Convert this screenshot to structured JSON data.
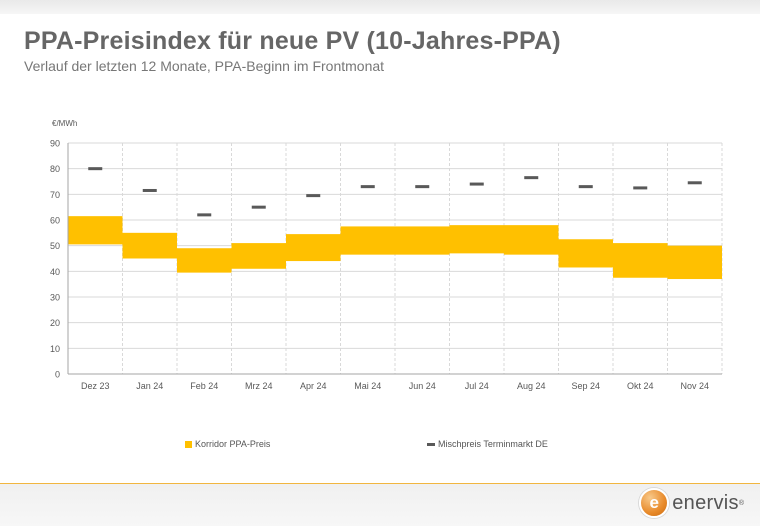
{
  "header": {
    "title": "PPA-Preisindex für neue PV (10-Jahres-PPA)",
    "subtitle": "Verlauf der letzten 12 Monate, PPA-Beginn im Frontmonat"
  },
  "colors": {
    "corridor": "#ffc000",
    "mix_price": "#595959",
    "grid": "#d9d9d9",
    "axis_text": "#595959"
  },
  "chart_data": {
    "type": "bar",
    "ylabel": "€/MWh",
    "ylim": [
      0,
      90
    ],
    "yticks": [
      0,
      10,
      20,
      30,
      40,
      50,
      60,
      70,
      80,
      90
    ],
    "grid": true,
    "legend_position": "bottom",
    "categories": [
      "Dez 23",
      "Jan 24",
      "Feb 24",
      "Mrz 24",
      "Apr 24",
      "Mai 24",
      "Jun 24",
      "Jul 24",
      "Aug 24",
      "Sep 24",
      "Okt 24",
      "Nov 24"
    ],
    "series": [
      {
        "name": "Korridor PPA-Preis",
        "kind": "range",
        "low": [
          50.5,
          45.0,
          39.5,
          41.0,
          44.0,
          46.5,
          46.5,
          47.0,
          46.5,
          41.5,
          37.5,
          37.0
        ],
        "high": [
          61.5,
          55.0,
          49.0,
          51.0,
          54.5,
          57.5,
          57.5,
          58.0,
          58.0,
          52.5,
          51.0,
          50.0
        ]
      },
      {
        "name": "Mischpreis Terminmarkt DE",
        "kind": "marker",
        "values": [
          80.0,
          71.5,
          62.0,
          65.0,
          69.5,
          73.0,
          73.0,
          74.0,
          76.5,
          73.0,
          72.5,
          74.5
        ]
      }
    ]
  },
  "legend": {
    "corridor_label": "Korridor PPA-Preis",
    "mix_label": "Mischpreis Terminmarkt DE"
  },
  "logo": {
    "mark": "e",
    "text": "enervis",
    "reg": "®"
  }
}
